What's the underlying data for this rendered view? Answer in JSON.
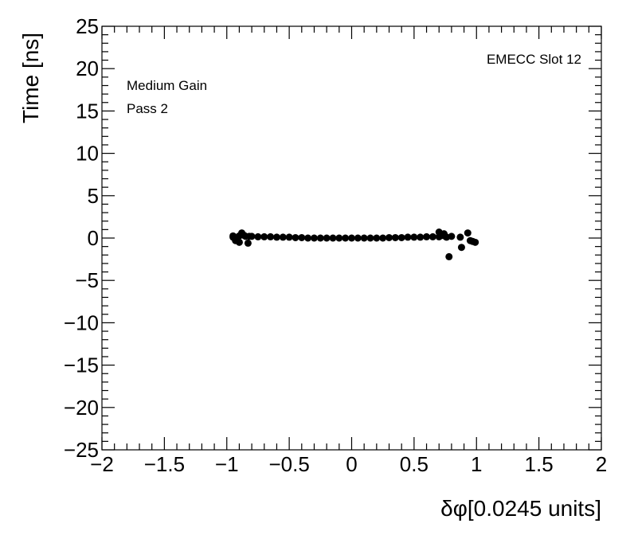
{
  "chart_data": {
    "type": "scatter",
    "x_label": "δφ[0.0245 units]",
    "y_label": "Time [ns]",
    "annotations": [
      "Medium Gain",
      "Pass 2",
      "EMECC Slot 12"
    ],
    "color": "#000000",
    "xlim": [
      -2,
      2
    ],
    "ylim": [
      -25,
      25
    ],
    "xticks": [
      {
        "value": -2,
        "label": "−2"
      },
      {
        "value": -1.5,
        "label": "−1.5"
      },
      {
        "value": -1,
        "label": "−1"
      },
      {
        "value": -0.5,
        "label": "−0.5"
      },
      0,
      0.5,
      1,
      1.5,
      2
    ],
    "yticks": [
      {
        "value": -25,
        "label": "−25"
      },
      {
        "value": -20,
        "label": "−20"
      },
      {
        "value": -15,
        "label": "−15"
      },
      {
        "value": -10,
        "label": "−10"
      },
      {
        "value": -5,
        "label": "−5"
      },
      0,
      5,
      10,
      15,
      20,
      25
    ],
    "x": [
      -0.95,
      -0.9,
      -0.85,
      -0.8,
      -0.75,
      -0.7,
      -0.65,
      -0.6,
      -0.55,
      -0.5,
      -0.45,
      -0.4,
      -0.35,
      -0.3,
      -0.25,
      -0.2,
      -0.15,
      -0.1,
      -0.05,
      0,
      0.05,
      0.1,
      0.15,
      0.2,
      0.25,
      0.3,
      0.35,
      0.4,
      0.45,
      0.5,
      0.55,
      0.6,
      0.65,
      0.7,
      0.75,
      -0.95,
      -0.93,
      -0.9,
      -0.88,
      -0.86,
      -0.83,
      -0.82,
      0.7,
      0.72,
      0.74,
      0.76,
      0.78,
      0.8,
      0.87,
      0.88,
      0.93,
      0.95,
      0.97,
      0.99
    ],
    "y": [
      0.25,
      0.25,
      0.2,
      0.2,
      0.15,
      0.15,
      0.15,
      0.1,
      0.1,
      0.1,
      0.05,
      0.05,
      0,
      0,
      0,
      0,
      0,
      0,
      0,
      0,
      0,
      0,
      0,
      0,
      0,
      0.05,
      0.05,
      0.05,
      0.1,
      0.1,
      0.1,
      0.15,
      0.15,
      0.15,
      0.2,
      0.1,
      -0.3,
      -0.5,
      0.6,
      0.3,
      -0.6,
      0.2,
      0.7,
      0.3,
      0.5,
      0.1,
      -2.2,
      0.2,
      0.1,
      -1.1,
      0.6,
      -0.3,
      -0.4,
      -0.5
    ]
  }
}
